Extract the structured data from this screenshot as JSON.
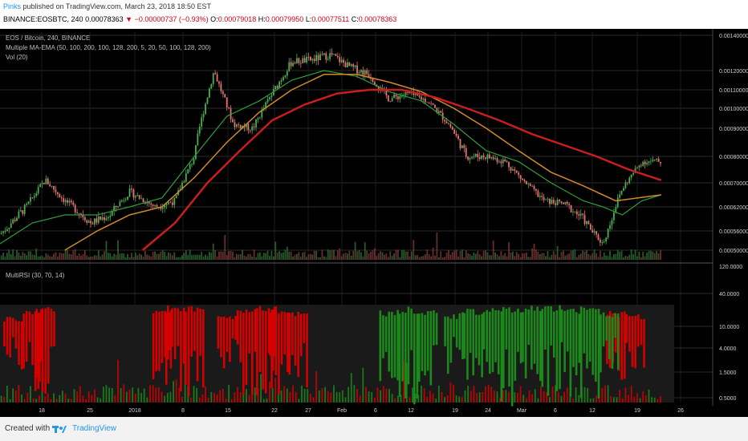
{
  "header": {
    "author": "Pinks",
    "published": "published on TradingView.com, March 23, 2018 18:50 EST",
    "symbol": "BINANCE:EOSBTC, 240",
    "last": "0.00078363",
    "change": "−0.00000737 (−0.93%)",
    "o_label": "O:",
    "o_val": "0.00079018",
    "h_label": "H:",
    "h_val": "0.00079950",
    "l_label": "L:",
    "l_val": "0.00077511",
    "c_label": "C:",
    "c_val": "0.00078363"
  },
  "legend": {
    "main": "EOS / Bitcoin, 240, BINANCE",
    "ma": "Multiple MA-EMA (50, 100, 200, 100, 128, 200, 5, 20, 50, 100, 128, 200)",
    "vol": "Vol (20)",
    "rsi": "MultiRSI (30, 70, 14)"
  },
  "footer": {
    "created": "Created with",
    "brand": "TradingView"
  },
  "colors": {
    "background": "#000000",
    "grid": "#2b2b2b",
    "candle_up": "#4caf50",
    "candle_down": "#e57373",
    "ma_green": "#2e9e3e",
    "ma_orange": "#d08a2a",
    "ma_red": "#c81e1e",
    "rsi_red": "#d50000",
    "rsi_green": "#1b8a1b"
  },
  "chart_data": [
    {
      "type": "line",
      "title": "EOS / Bitcoin, 240, BINANCE",
      "x_ticks": [
        "18",
        "25",
        "2018",
        "8",
        "15",
        "22",
        "27",
        "Feb",
        "6",
        "12",
        "19",
        "24",
        "Mar",
        "6",
        "12",
        "19",
        "26"
      ],
      "y_ticks": [
        "0.00140000",
        "0.00120000",
        "0.00110000",
        "0.00100000",
        "0.00090000",
        "0.00080000",
        "0.00070000",
        "0.00062000",
        "0.00056000",
        "0.00050000"
      ],
      "price_axis_label": "120.0000",
      "ylim": [
        0.00048,
        0.00142
      ],
      "series": [
        {
          "name": "Price (approx close)",
          "x": [
            0,
            4,
            7,
            10,
            14,
            17,
            20,
            24,
            27,
            30,
            33,
            36,
            39,
            42,
            45,
            48,
            51,
            54,
            57,
            60,
            63,
            66,
            69,
            72,
            75,
            78,
            81,
            84,
            87,
            90,
            93,
            96,
            99,
            102
          ],
          "y": [
            0.00055,
            0.00062,
            0.00071,
            0.00064,
            0.00058,
            0.0006,
            0.00067,
            0.00062,
            0.00064,
            0.0008,
            0.0012,
            0.00092,
            0.0009,
            0.00108,
            0.00125,
            0.00126,
            0.00129,
            0.00122,
            0.00118,
            0.00105,
            0.00108,
            0.00104,
            0.00093,
            0.0008,
            0.0008,
            0.00078,
            0.0007,
            0.00064,
            0.00063,
            0.00059,
            0.00052,
            0.00068,
            0.00078,
            0.00078
          ]
        },
        {
          "name": "MA 50",
          "x": [
            0,
            5,
            10,
            15,
            20,
            25,
            30,
            35,
            40,
            45,
            50,
            55,
            60,
            65,
            70,
            75,
            80,
            85,
            90,
            93,
            96,
            99,
            102
          ],
          "y": [
            0.00052,
            0.00058,
            0.0006,
            0.0006,
            0.00062,
            0.00065,
            0.0008,
            0.00096,
            0.00104,
            0.00115,
            0.0012,
            0.00117,
            0.00109,
            0.00104,
            0.00092,
            0.00082,
            0.00078,
            0.0007,
            0.00064,
            0.00062,
            0.0006,
            0.00064,
            0.00066
          ]
        },
        {
          "name": "MA 100",
          "x": [
            10,
            15,
            20,
            25,
            30,
            35,
            40,
            45,
            50,
            55,
            60,
            65,
            70,
            75,
            80,
            85,
            90,
            95,
            102
          ],
          "y": [
            0.0005,
            0.00056,
            0.0006,
            0.00062,
            0.00072,
            0.00085,
            0.00098,
            0.0011,
            0.00118,
            0.00118,
            0.00114,
            0.00109,
            0.001,
            0.0009,
            0.00082,
            0.00074,
            0.00069,
            0.00064,
            0.00066
          ]
        },
        {
          "name": "MA 200",
          "x": [
            22,
            27,
            32,
            37,
            42,
            47,
            52,
            57,
            62,
            67,
            72,
            77,
            82,
            87,
            92,
            97,
            102
          ],
          "y": [
            0.0005,
            0.00058,
            0.0007,
            0.00082,
            0.00094,
            0.00102,
            0.00108,
            0.0011,
            0.0011,
            0.00106,
            0.001,
            0.00094,
            0.00088,
            0.00084,
            0.0008,
            0.00075,
            0.00071
          ]
        }
      ]
    },
    {
      "type": "heatmap",
      "title": "MultiRSI (30, 70, 14)",
      "y_ticks": [
        "40.0000",
        "10.0000",
        "4.0000",
        "1.5000",
        "0.5000"
      ],
      "series": [
        {
          "name": "Overbought",
          "color": "#d50000",
          "x": [
            2,
            5,
            7,
            25,
            27,
            30,
            35,
            38,
            41,
            43,
            46,
            95,
            98
          ],
          "depth": [
            0.6,
            0.9,
            0.95,
            0.98,
            0.9,
            0.95,
            0.6,
            0.95,
            0.98,
            0.95,
            0.85,
            0.8,
            0.7
          ]
        },
        {
          "name": "Oversold",
          "color": "#1b8a1b",
          "x": [
            60,
            63,
            66,
            70,
            73,
            76,
            79,
            82,
            85,
            88,
            91,
            94
          ],
          "depth": [
            0.8,
            0.95,
            0.9,
            0.7,
            0.85,
            0.95,
            0.98,
            0.99,
            0.99,
            0.95,
            0.98,
            0.7
          ]
        }
      ]
    }
  ]
}
